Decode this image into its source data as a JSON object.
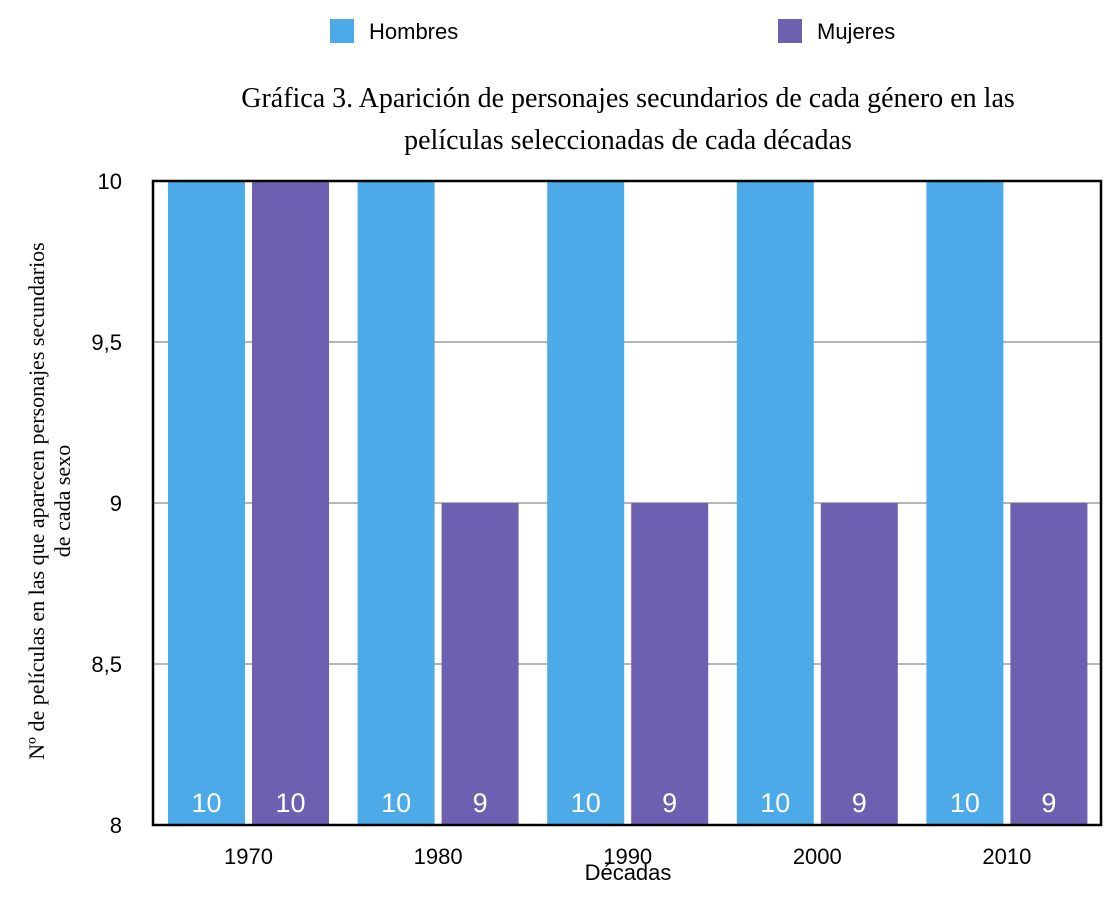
{
  "chart_data": {
    "type": "bar",
    "title": "Gráfica 3. Aparición de personajes secundarios de cada género en las películas seleccionadas de cada décadas",
    "title_lines": [
      "Gráfica 3. Aparición de personajes secundarios de cada género en las",
      "películas seleccionadas de cada décadas"
    ],
    "xlabel": "Décadas",
    "ylabel": "Nº de películas en las que aparecen personajes secundarios de cada sexo",
    "ylabel_lines": [
      "Nº de películas en las que aparecen personajes secundarios",
      "de cada sexo"
    ],
    "categories": [
      "1970",
      "1980",
      "1990",
      "2000",
      "2010"
    ],
    "series": [
      {
        "name": "Hombres",
        "color": "#4DAAE8",
        "values": [
          10,
          10,
          10,
          10,
          10
        ],
        "labels": [
          "10",
          "10",
          "10",
          "10",
          "10"
        ]
      },
      {
        "name": "Mujeres",
        "color": "#6E60B0",
        "values": [
          10,
          9,
          9,
          9,
          9
        ],
        "labels": [
          "10",
          "9",
          "9",
          "9",
          "9"
        ]
      }
    ],
    "ylim": [
      8,
      10
    ],
    "yticks": [
      {
        "value": 8,
        "label": "8"
      },
      {
        "value": 8.5,
        "label": "8,5"
      },
      {
        "value": 9,
        "label": "9"
      },
      {
        "value": 9.5,
        "label": "9,5"
      },
      {
        "value": 10,
        "label": "10"
      }
    ],
    "grid": true,
    "legend_position": "top"
  }
}
